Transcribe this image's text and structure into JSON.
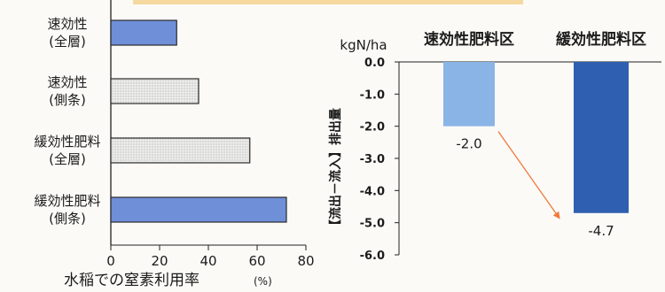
{
  "chart_data": [
    {
      "type": "bar",
      "orientation": "horizontal",
      "categories": [
        [
          "速効性",
          "(全層)"
        ],
        [
          "速効性",
          "(側条)"
        ],
        [
          "緩効性肥料",
          "(全層)"
        ],
        [
          "緩効性肥料",
          "(側条)"
        ]
      ],
      "values": [
        27,
        36,
        57,
        72
      ],
      "bar_colors": [
        "#6f8fd8",
        "#e8e8e6",
        "#e8e8e6",
        "#6f8fd8"
      ],
      "bar_patterns": [
        "solid",
        "dotted",
        "dotted",
        "solid"
      ],
      "xlabel": "水稲での窒素利用率",
      "xunit": "(%)",
      "xlim": [
        0,
        80
      ],
      "xticks": [
        0,
        20,
        40,
        60,
        80
      ],
      "grid": false
    },
    {
      "type": "bar",
      "orientation": "vertical",
      "categories": [
        "速効性肥料区",
        "緩効性肥料区"
      ],
      "values": [
        -2.0,
        -4.7
      ],
      "data_labels": [
        "-2.0",
        "-4.7"
      ],
      "bar_colors": [
        "#8ab4e6",
        "#2f5fb0"
      ],
      "unit": "kgN/ha",
      "ylabel": "【流出－流入】排出量",
      "ylim": [
        -6.0,
        0.0
      ],
      "yticks": [
        "0.0",
        "-1.0",
        "-2.0",
        "-3.0",
        "-4.0",
        "-5.0",
        "-6.0"
      ],
      "arrow_color": "#ef7a3c",
      "grid": false
    }
  ]
}
